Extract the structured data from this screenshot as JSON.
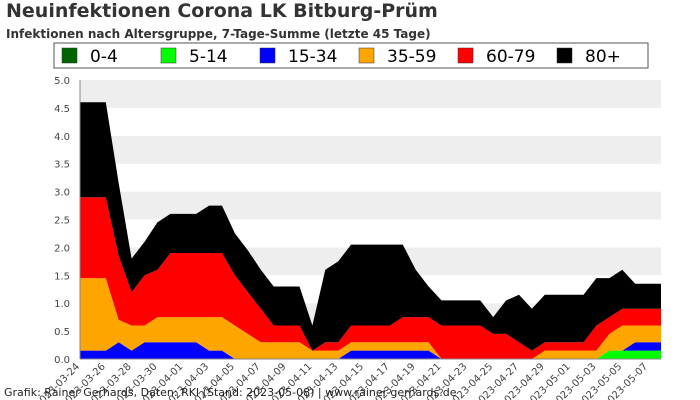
{
  "chart_data": {
    "type": "area",
    "stacked": true,
    "title": "Neuinfektionen Corona LK Bitburg-Prüm",
    "subtitle": "Infektionen nach Altersgruppe, 7-Tage-Summe (letzte 45 Tage)",
    "xlabel": "",
    "ylabel": "",
    "ylim": [
      0,
      5.0
    ],
    "yticks": [
      "0.0",
      "0.5",
      "1.0",
      "1.5",
      "2.0",
      "2.5",
      "3.0",
      "3.5",
      "4.0",
      "4.5",
      "5.0"
    ],
    "grid": "horizontal bands",
    "legend_position": "top",
    "x": [
      "2023-03-24",
      "2023-03-25",
      "2023-03-26",
      "2023-03-27",
      "2023-03-28",
      "2023-03-29",
      "2023-03-30",
      "2023-03-31",
      "2023-04-01",
      "2023-04-02",
      "2023-04-03",
      "2023-04-04",
      "2023-04-05",
      "2023-04-06",
      "2023-04-07",
      "2023-04-08",
      "2023-04-09",
      "2023-04-10",
      "2023-04-11",
      "2023-04-12",
      "2023-04-13",
      "2023-04-14",
      "2023-04-15",
      "2023-04-16",
      "2023-04-17",
      "2023-04-18",
      "2023-04-19",
      "2023-04-20",
      "2023-04-21",
      "2023-04-22",
      "2023-04-23",
      "2023-04-24",
      "2023-04-25",
      "2023-04-26",
      "2023-04-27",
      "2023-04-28",
      "2023-04-29",
      "2023-04-30",
      "2023-05-01",
      "2023-05-02",
      "2023-05-03",
      "2023-05-04",
      "2023-05-05",
      "2023-05-06",
      "2023-05-07",
      "2023-05-08"
    ],
    "xtick_labels": [
      "2023-03-24",
      "2023-03-26",
      "2023-03-28",
      "2023-03-30",
      "2023-04-01",
      "2023-04-03",
      "2023-04-05",
      "2023-04-07",
      "2023-04-09",
      "2023-04-11",
      "2023-04-13",
      "2023-04-15",
      "2023-04-17",
      "2023-04-19",
      "2023-04-21",
      "2023-04-23",
      "2023-04-25",
      "2023-04-27",
      "2023-04-29",
      "2023-05-01",
      "2023-05-03",
      "2023-05-05",
      "2023-05-07"
    ],
    "series": [
      {
        "name": "0-4",
        "color": "#006400",
        "values": [
          0,
          0,
          0,
          0,
          0,
          0,
          0,
          0,
          0,
          0,
          0,
          0,
          0,
          0,
          0,
          0,
          0,
          0,
          0,
          0,
          0,
          0,
          0,
          0,
          0,
          0,
          0,
          0,
          0,
          0,
          0,
          0,
          0,
          0,
          0,
          0,
          0,
          0,
          0,
          0,
          0,
          0,
          0,
          0,
          0,
          0
        ]
      },
      {
        "name": "5-14",
        "color": "#00ff00",
        "values": [
          0,
          0,
          0,
          0,
          0,
          0,
          0,
          0,
          0,
          0,
          0,
          0,
          0,
          0,
          0,
          0,
          0,
          0,
          0,
          0,
          0,
          0,
          0,
          0,
          0,
          0,
          0,
          0,
          0,
          0,
          0,
          0,
          0,
          0,
          0,
          0,
          0,
          0,
          0,
          0,
          0,
          0.15,
          0.15,
          0.15,
          0.15,
          0.15
        ]
      },
      {
        "name": "15-34",
        "color": "#0000ff",
        "values": [
          0.15,
          0.15,
          0.15,
          0.3,
          0.15,
          0.3,
          0.3,
          0.3,
          0.3,
          0.3,
          0.15,
          0.15,
          0,
          0,
          0,
          0,
          0,
          0,
          0,
          0,
          0,
          0.15,
          0.15,
          0.15,
          0.15,
          0.15,
          0.15,
          0.15,
          0,
          0,
          0,
          0,
          0,
          0,
          0,
          0,
          0,
          0,
          0,
          0,
          0,
          0,
          0,
          0.15,
          0.15,
          0.15
        ]
      },
      {
        "name": "35-59",
        "color": "#ffa500",
        "values": [
          1.3,
          1.3,
          1.3,
          0.4,
          0.45,
          0.3,
          0.45,
          0.45,
          0.45,
          0.45,
          0.6,
          0.6,
          0.6,
          0.45,
          0.3,
          0.3,
          0.3,
          0.3,
          0.15,
          0.15,
          0.15,
          0.15,
          0.15,
          0.15,
          0.15,
          0.15,
          0.15,
          0.15,
          0,
          0,
          0,
          0,
          0,
          0,
          0,
          0,
          0.15,
          0.15,
          0.15,
          0.15,
          0.15,
          0.3,
          0.45,
          0.3,
          0.3,
          0.3
        ]
      },
      {
        "name": "60-79",
        "color": "#ff0000",
        "values": [
          1.45,
          1.45,
          1.45,
          1.15,
          0.6,
          0.9,
          0.85,
          1.15,
          1.15,
          1.15,
          1.15,
          1.15,
          0.9,
          0.75,
          0.6,
          0.3,
          0.3,
          0.3,
          0,
          0.15,
          0.15,
          0.3,
          0.3,
          0.3,
          0.3,
          0.45,
          0.45,
          0.45,
          0.6,
          0.6,
          0.6,
          0.6,
          0.45,
          0.45,
          0.3,
          0.15,
          0.15,
          0.15,
          0.15,
          0.15,
          0.45,
          0.3,
          0.3,
          0.3,
          0.3,
          0.3
        ]
      },
      {
        "name": "80+",
        "color": "#000000",
        "values": [
          1.7,
          1.7,
          1.7,
          1.3,
          0.6,
          0.6,
          0.85,
          0.7,
          0.7,
          0.7,
          0.85,
          0.85,
          0.75,
          0.75,
          0.7,
          0.7,
          0.7,
          0.7,
          0.45,
          1.3,
          1.45,
          1.45,
          1.45,
          1.45,
          1.45,
          1.3,
          0.85,
          0.55,
          0.45,
          0.45,
          0.45,
          0.45,
          0.3,
          0.6,
          0.85,
          0.75,
          0.85,
          0.85,
          0.85,
          0.85,
          0.85,
          0.7,
          0.7,
          0.45,
          0.45,
          0.45
        ]
      }
    ]
  },
  "footer": {
    "credits": "Grafik: Rainer Gerhards, Daten: RKI (Stand: 2023-05-08) | www.rainer-gerhards.de"
  }
}
